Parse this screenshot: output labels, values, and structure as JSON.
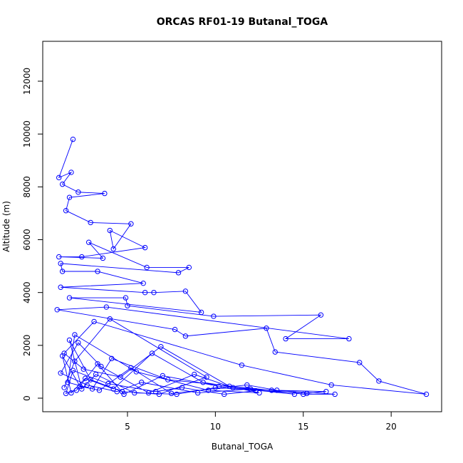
{
  "chart_data": {
    "type": "line",
    "marker": "circle",
    "title": "ORCAS RF01-19 Butanal_TOGA",
    "x_label": "Butanal_TOGA",
    "y_label": "Altitude (m)",
    "xlim": [
      0.18,
      22.87
    ],
    "ylim": [
      -512,
      13510
    ],
    "xticks": [
      5,
      10,
      15,
      20
    ],
    "yticks": [
      0,
      2000,
      4000,
      6000,
      8000,
      10000,
      12000
    ],
    "series": [
      {
        "color": "#0000ff",
        "x": [
          1.9,
          1.1,
          1.8,
          1.3,
          2.2,
          3.7,
          1.7,
          1.5,
          2.9,
          5.2,
          4.2,
          4.0,
          6.0,
          2.4,
          1.1,
          3.6,
          2.8,
          6.1,
          8.5,
          7.9,
          1.2,
          1.3,
          3.3,
          5.9,
          1.2,
          6.0,
          6.5,
          8.3,
          9.2,
          1.7,
          4.9,
          5.0,
          9.9,
          16.0,
          14.0,
          17.6,
          3.8,
          1.0,
          7.7,
          8.3,
          12.9,
          13.4,
          18.2,
          19.3,
          22.0,
          16.6,
          11.5,
          3.1,
          1.4,
          2.5,
          4.6,
          6.9,
          10.8,
          12.5,
          9.6,
          5.5,
          2.0,
          1.6,
          3.0,
          4.1,
          7.3,
          13.2,
          15.0,
          16.8,
          11.0,
          8.8,
          6.2,
          3.5,
          2.2,
          1.2,
          2.7,
          4.4,
          5.8,
          9.0,
          12.0,
          14.5,
          10.2,
          7.0,
          4.8,
          3.3,
          2.1,
          1.5,
          1.9,
          3.9,
          6.6,
          8.1,
          10.5,
          12.3,
          9.3,
          6.4,
          4.2,
          2.6,
          1.8,
          1.3,
          2.3,
          3.4,
          5.2,
          7.5,
          11.8,
          13.5,
          16.3,
          15.2,
          10.0,
          7.8,
          5.4,
          3.2,
          2.4,
          1.7,
          2.9,
          4.7,
          6.8,
          9.5,
          4.0,
          2.0,
          1.4
        ],
        "values": [
          9800,
          8350,
          8550,
          8100,
          7800,
          7750,
          7600,
          7100,
          6650,
          6600,
          5650,
          6350,
          5700,
          5350,
          5350,
          5300,
          5900,
          4950,
          4950,
          4750,
          5100,
          4800,
          4800,
          4350,
          4200,
          4000,
          4000,
          4050,
          3250,
          3800,
          3800,
          3500,
          3100,
          3150,
          2250,
          2250,
          3450,
          3350,
          2600,
          2350,
          2650,
          1750,
          1350,
          650,
          150,
          500,
          1250,
          2900,
          1700,
          1100,
          800,
          1950,
          450,
          200,
          300,
          1000,
          2400,
          600,
          350,
          1500,
          700,
          300,
          150,
          150,
          400,
          900,
          200,
          1200,
          2100,
          950,
          500,
          250,
          600,
          200,
          350,
          150,
          450,
          850,
          150,
          1300,
          300,
          180,
          1050,
          550,
          250,
          400,
          150,
          280,
          600,
          1700,
          350,
          750,
          200,
          1600,
          450,
          300,
          1150,
          180,
          500,
          300,
          250,
          180,
          400,
          150,
          200,
          900,
          350,
          2200,
          700,
          250,
          150,
          800,
          3000,
          1400,
          400
        ]
      }
    ]
  }
}
